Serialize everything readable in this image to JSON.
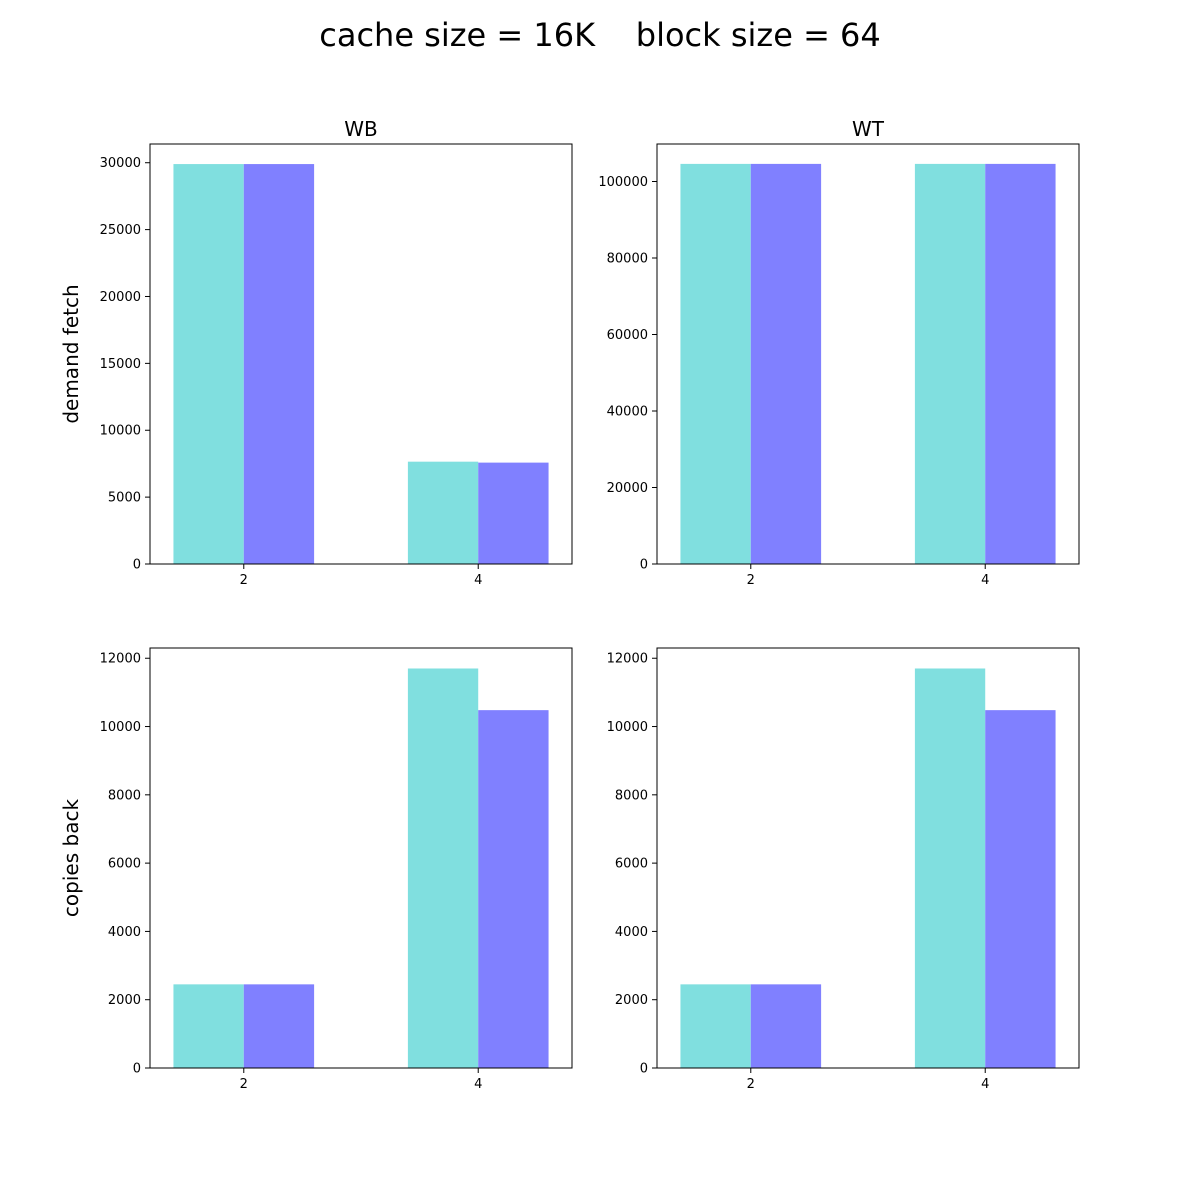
{
  "figure": {
    "title": "cache size = 16K    block size = 64"
  },
  "colors": {
    "series_a": "#80dfdf",
    "series_b": "#8080ff"
  },
  "chart_data": [
    {
      "type": "bar",
      "title": "WB",
      "ylabel": "demand fetch",
      "xlabel": "",
      "categories": [
        "2",
        "4"
      ],
      "series": [
        {
          "values": [
            29900,
            7650
          ]
        },
        {
          "values": [
            29900,
            7580
          ]
        }
      ],
      "ylim": [
        0,
        31400
      ],
      "yticks": [
        0,
        5000,
        10000,
        15000,
        20000,
        25000,
        30000
      ],
      "grid": false
    },
    {
      "type": "bar",
      "title": "WT",
      "ylabel": "",
      "xlabel": "",
      "categories": [
        "2",
        "4"
      ],
      "series": [
        {
          "values": [
            104600,
            104600
          ]
        },
        {
          "values": [
            104600,
            104600
          ]
        }
      ],
      "ylim": [
        0,
        109800
      ],
      "yticks": [
        0,
        20000,
        40000,
        60000,
        80000,
        100000
      ],
      "grid": false
    },
    {
      "type": "bar",
      "title": "",
      "ylabel": "copies back",
      "xlabel": "",
      "categories": [
        "2",
        "4"
      ],
      "series": [
        {
          "values": [
            2450,
            11700
          ]
        },
        {
          "values": [
            2450,
            10480
          ]
        }
      ],
      "ylim": [
        0,
        12300
      ],
      "yticks": [
        0,
        2000,
        4000,
        6000,
        8000,
        10000,
        12000
      ],
      "grid": false
    },
    {
      "type": "bar",
      "title": "",
      "ylabel": "",
      "xlabel": "",
      "categories": [
        "2",
        "4"
      ],
      "series": [
        {
          "values": [
            2450,
            11700
          ]
        },
        {
          "values": [
            2450,
            10480
          ]
        }
      ],
      "ylim": [
        0,
        12300
      ],
      "yticks": [
        0,
        2000,
        4000,
        6000,
        8000,
        10000,
        12000
      ],
      "grid": false
    }
  ]
}
